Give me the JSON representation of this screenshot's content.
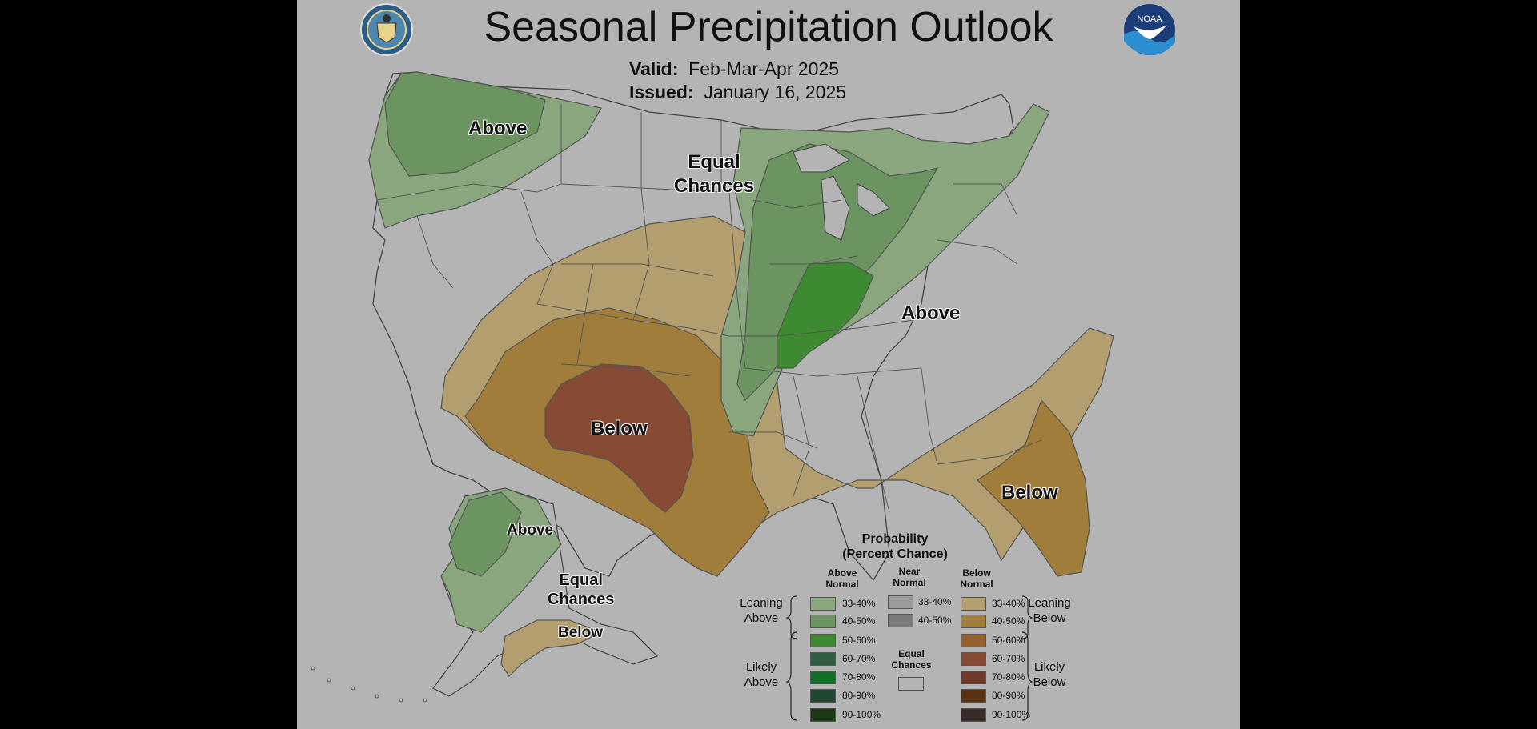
{
  "header": {
    "title": "Seasonal Precipitation Outlook",
    "valid_label": "Valid:",
    "valid_value": "Feb-Mar-Apr 2025",
    "issued_label": "Issued:",
    "issued_value": "January 16, 2025"
  },
  "logos": {
    "left": "department-of-commerce-seal",
    "right_text": "NOAA"
  },
  "map_labels": {
    "nw_above": "Above",
    "equal_line1": "Equal",
    "equal_line2": "Chances",
    "midwest_above": "Above",
    "sw_below": "Below",
    "se_below": "Below",
    "ak_above": "Above",
    "ak_equal_line1": "Equal",
    "ak_equal_line2": "Chances",
    "ak_below": "Below"
  },
  "legend": {
    "title_line1": "Probability",
    "title_line2": "(Percent Chance)",
    "col_above_1": "Above",
    "col_above_2": "Normal",
    "col_near_1": "Near",
    "col_near_2": "Normal",
    "col_below_1": "Below",
    "col_below_2": "Normal",
    "leaning_above_1": "Leaning",
    "leaning_above_2": "Above",
    "likely_above_1": "Likely",
    "likely_above_2": "Above",
    "leaning_below_1": "Leaning",
    "leaning_below_2": "Below",
    "likely_below_1": "Likely",
    "likely_below_2": "Below",
    "equal_1": "Equal",
    "equal_2": "Chances",
    "above": [
      {
        "label": "33-40%",
        "color": "#89a67e"
      },
      {
        "label": "40-50%",
        "color": "#6b9460"
      },
      {
        "label": "50-60%",
        "color": "#3d8a31"
      },
      {
        "label": "60-70%",
        "color": "#2f5e43"
      },
      {
        "label": "70-80%",
        "color": "#116f28"
      },
      {
        "label": "80-90%",
        "color": "#1e4630"
      },
      {
        "label": "90-100%",
        "color": "#1b3a14"
      }
    ],
    "near": [
      {
        "label": "33-40%",
        "color": "#9b9b9b"
      },
      {
        "label": "40-50%",
        "color": "#7a7a7a"
      }
    ],
    "below": [
      {
        "label": "33-40%",
        "color": "#b29e6f"
      },
      {
        "label": "40-50%",
        "color": "#a17d3b"
      },
      {
        "label": "50-60%",
        "color": "#93602f"
      },
      {
        "label": "60-70%",
        "color": "#874a33"
      },
      {
        "label": "70-80%",
        "color": "#6f3a2e"
      },
      {
        "label": "80-90%",
        "color": "#5a3212"
      },
      {
        "label": "90-100%",
        "color": "#3b2a2a"
      }
    ]
  },
  "colors": {
    "background": "#b4b4b4",
    "outer": "#000000",
    "equal_chances": "#b4b4b4"
  }
}
